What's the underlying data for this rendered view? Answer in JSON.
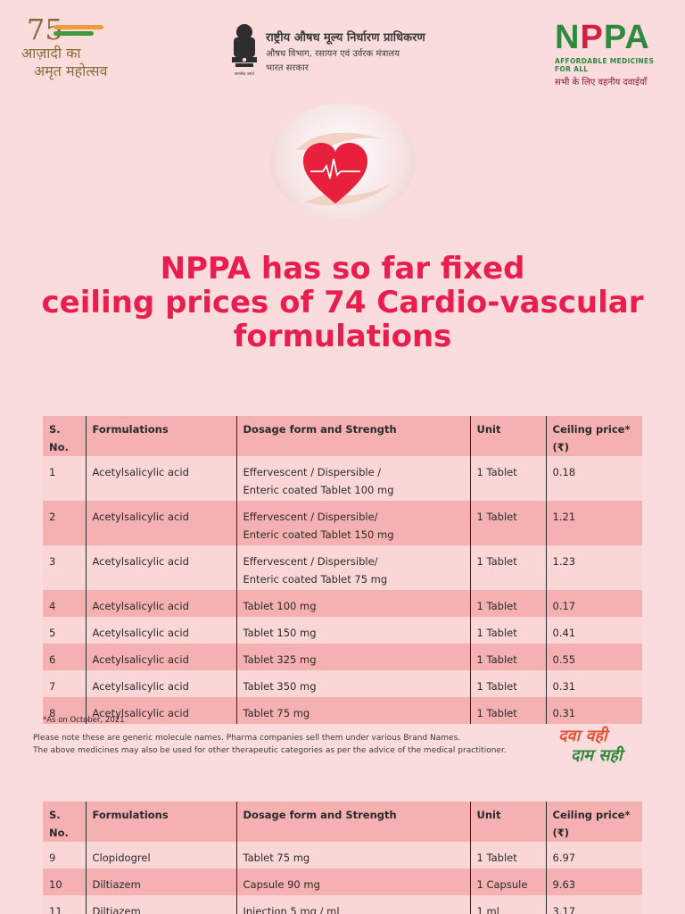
{
  "header": {
    "azadi": {
      "number": "75",
      "line1": "आज़ादी का",
      "line2": "अमृत महोत्सव"
    },
    "gov": {
      "line1": "राष्ट्रीय औषध मूल्य निर्धारण प्राधिकरण",
      "line2": "औषध विभाग, रसायन एवं उर्वरक मंत्रालय",
      "line3": "भारत सरकार",
      "emblem_motto": "सत्यमेव जयते"
    },
    "nppa": {
      "mark_n": "N",
      "mark_p1": "P",
      "mark_rest": "PA",
      "tag_en": "AFFORDABLE MEDICINES FOR ALL",
      "tag_hi": "सभी के लिए वहनीय दवाईयाँ"
    }
  },
  "headline": {
    "line1": "NPPA has so far fixed",
    "line2": "ceiling prices of 74 Cardio-vascular",
    "line3": "formulations"
  },
  "table_headers": {
    "sno": "S. No.",
    "formulation": "Formulations",
    "dosage": "Dosage form and Strength",
    "unit": "Unit",
    "price": "Ceiling price* (₹)"
  },
  "table1": [
    {
      "sno": "1",
      "formulation": "Acetylsalicylic acid",
      "dosage1": "Effervescent / Dispersible /",
      "dosage2": "Enteric coated Tablet 100 mg",
      "unit": "1 Tablet",
      "price": "0.18"
    },
    {
      "sno": "2",
      "formulation": "Acetylsalicylic acid",
      "dosage1": "Effervescent / Dispersible/",
      "dosage2": "Enteric coated Tablet 150 mg",
      "unit": "1 Tablet",
      "price": "1.21"
    },
    {
      "sno": "3",
      "formulation": "Acetylsalicylic acid",
      "dosage1": "Effervescent / Dispersible/",
      "dosage2": "Enteric coated Tablet 75 mg",
      "unit": "1 Tablet",
      "price": "1.23"
    },
    {
      "sno": "4",
      "formulation": "Acetylsalicylic acid",
      "dosage1": "Tablet 100 mg",
      "dosage2": "",
      "unit": "1 Tablet",
      "price": "0.17"
    },
    {
      "sno": "5",
      "formulation": "Acetylsalicylic acid",
      "dosage1": "Tablet 150 mg",
      "dosage2": "",
      "unit": "1 Tablet",
      "price": "0.41"
    },
    {
      "sno": "6",
      "formulation": "Acetylsalicylic acid",
      "dosage1": "Tablet 325 mg",
      "dosage2": "",
      "unit": "1 Tablet",
      "price": "0.55"
    },
    {
      "sno": "7",
      "formulation": "Acetylsalicylic acid",
      "dosage1": "Tablet 350 mg",
      "dosage2": "",
      "unit": "1 Tablet",
      "price": "0.31"
    },
    {
      "sno": "8",
      "formulation": "Acetylsalicylic acid",
      "dosage1": "Tablet 75 mg",
      "dosage2": "",
      "unit": "1 Tablet",
      "price": "0.31"
    }
  ],
  "footnote": "*As on October, 2021",
  "notes": {
    "line1": "Please note these are generic molecule names. Pharma companies sell them under various Brand Names.",
    "line2": "The above medicines may also be used for other therapeutic categories as per the advice of the medical practitioner."
  },
  "slogan": {
    "line1": "दवा वही",
    "line2": "दाम सही"
  },
  "table2": [
    {
      "sno": "9",
      "formulation": "Clopidogrel",
      "dosage1": "Tablet 75 mg",
      "dosage2": "",
      "unit": "1 Tablet",
      "price": "6.97"
    },
    {
      "sno": "10",
      "formulation": "Diltiazem",
      "dosage1": "Capsule 90 mg",
      "dosage2": "",
      "unit": "1 Capsule",
      "price": "9.63"
    },
    {
      "sno": "11",
      "formulation": "Diltiazem",
      "dosage1": "Injection 5 mg / ml",
      "dosage2": "",
      "unit": "1 ml",
      "price": "3.17"
    }
  ],
  "colors": {
    "background": "#fbdcdc",
    "headline": "#e81e4f",
    "row_light": "#fbd6d6",
    "row_dark": "#f5b0b2",
    "brand_green": "#2d8a3e",
    "heart": "#e8203c"
  }
}
